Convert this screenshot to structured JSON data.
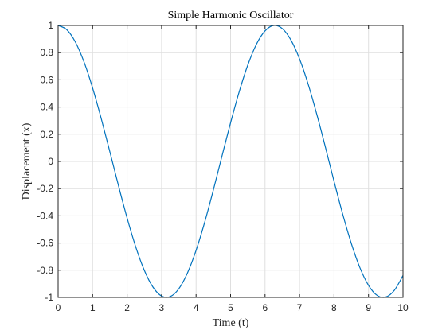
{
  "chart_data": {
    "type": "line",
    "title": "Simple Harmonic Oscillator",
    "xlabel": "Time (t)",
    "ylabel": "Displacement (x)",
    "xlim": [
      0,
      10
    ],
    "ylim": [
      -1,
      1
    ],
    "xticks": [
      0,
      1,
      2,
      3,
      4,
      5,
      6,
      7,
      8,
      9,
      10
    ],
    "xtick_labels": [
      "0",
      "1",
      "2",
      "3",
      "4",
      "5",
      "6",
      "7",
      "8",
      "9",
      "10"
    ],
    "yticks": [
      1,
      0.8,
      0.6,
      0.4,
      0.2,
      0,
      -0.2,
      -0.4,
      -0.6,
      -0.8,
      -1
    ],
    "ytick_labels": [
      "1",
      "0.8",
      "0.6",
      "0.4",
      "0.2",
      "0",
      "-0.2",
      "-0.4",
      "-0.6",
      "-0.8",
      "-1"
    ],
    "grid": true,
    "series": [
      {
        "color": "#0072bd",
        "x": [
          0,
          0.25,
          0.5,
          0.75,
          1,
          1.25,
          1.5,
          1.75,
          2,
          2.25,
          2.5,
          2.75,
          3,
          3.25,
          3.5,
          3.75,
          4,
          4.25,
          4.5,
          4.75,
          5,
          5.25,
          5.5,
          5.75,
          6,
          6.25,
          6.5,
          6.75,
          7,
          7.25,
          7.5,
          7.75,
          8,
          8.25,
          8.5,
          8.75,
          9,
          9.25,
          9.5,
          9.75,
          10
        ],
        "y": [
          1,
          0.969,
          0.878,
          0.732,
          0.54,
          0.315,
          0.071,
          -0.178,
          -0.416,
          -0.628,
          -0.801,
          -0.924,
          -0.99,
          -0.994,
          -0.936,
          -0.82,
          -0.654,
          -0.447,
          -0.211,
          0.038,
          0.284,
          0.512,
          0.709,
          0.862,
          0.96,
          1,
          0.977,
          0.893,
          0.754,
          0.568,
          0.347,
          0.105,
          -0.146,
          -0.386,
          -0.602,
          -0.781,
          -0.911,
          -0.985,
          -0.997,
          -0.947,
          -0.839
        ]
      }
    ]
  }
}
